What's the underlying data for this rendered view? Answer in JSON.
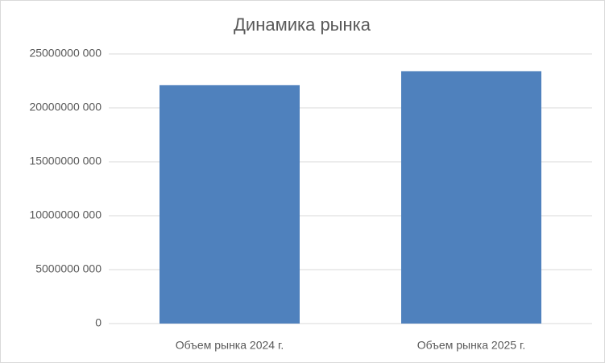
{
  "chart_data": {
    "type": "bar",
    "title": "Динамика рынка",
    "categories": [
      "Объем рынка 2024 г.",
      "Объем рынка 2025 г."
    ],
    "values": [
      22100000000,
      23400000000
    ],
    "color": "#4f81bd",
    "ylim": [
      0,
      25000000000
    ],
    "yticks": [
      0,
      {
        "value": 5000000000,
        "label": "5000000 000"
      },
      {
        "value": 10000000000,
        "label": "10000000 000"
      },
      {
        "value": 15000000000,
        "label": "15000000 000"
      },
      {
        "value": 20000000000,
        "label": "20000000 000"
      },
      {
        "value": 25000000000,
        "label": "25000000 000"
      }
    ],
    "grid": true
  }
}
